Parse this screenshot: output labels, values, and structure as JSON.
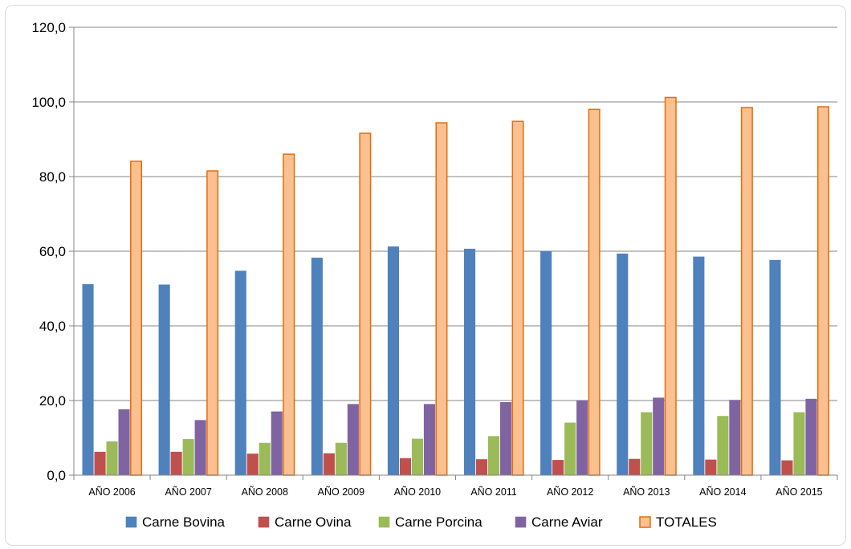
{
  "chart_data": {
    "type": "bar",
    "categories": [
      "AÑO 2006",
      "AÑO 2007",
      "AÑO 2008",
      "AÑO 2009",
      "AÑO 2010",
      "AÑO 2011",
      "AÑO 2012",
      "AÑO 2013",
      "AÑO 2014",
      "AÑO 2015"
    ],
    "series": [
      {
        "name": "Carne Bovina",
        "color": "#4f81bd",
        "stroke": "#4f81bd",
        "values": [
          51.1,
          51.0,
          54.7,
          58.2,
          61.2,
          60.6,
          60.0,
          59.3,
          58.5,
          57.6
        ]
      },
      {
        "name": "Carne Ovina",
        "color": "#c0504d",
        "stroke": "#c0504d",
        "values": [
          6.2,
          6.2,
          5.7,
          5.8,
          4.5,
          4.2,
          4.0,
          4.3,
          4.1,
          3.9
        ]
      },
      {
        "name": "Carne Porcina",
        "color": "#9bbb59",
        "stroke": "#9bbb59",
        "values": [
          9.0,
          9.6,
          8.6,
          8.6,
          9.7,
          10.4,
          14.0,
          16.8,
          15.8,
          16.8
        ]
      },
      {
        "name": "Carne Aviar",
        "color": "#8064a2",
        "stroke": "#8064a2",
        "values": [
          17.6,
          14.7,
          17.0,
          19.0,
          19.0,
          19.5,
          20.0,
          20.7,
          20.1,
          20.4
        ]
      },
      {
        "name": "TOTALES",
        "color": "#fac090",
        "stroke": "#e46c0a",
        "values": [
          84.1,
          81.5,
          86.0,
          91.6,
          94.4,
          94.8,
          98.0,
          101.2,
          98.5,
          98.7
        ]
      }
    ],
    "ylim": [
      0,
      120
    ],
    "yticks": [
      "0,0",
      "20,0",
      "40,0",
      "60,0",
      "80,0",
      "100,0",
      "120,0"
    ],
    "ytick_values": [
      0,
      20,
      40,
      60,
      80,
      100,
      120
    ],
    "grid": true,
    "legend_position": "bottom",
    "title": "",
    "xlabel": "",
    "ylabel": ""
  }
}
